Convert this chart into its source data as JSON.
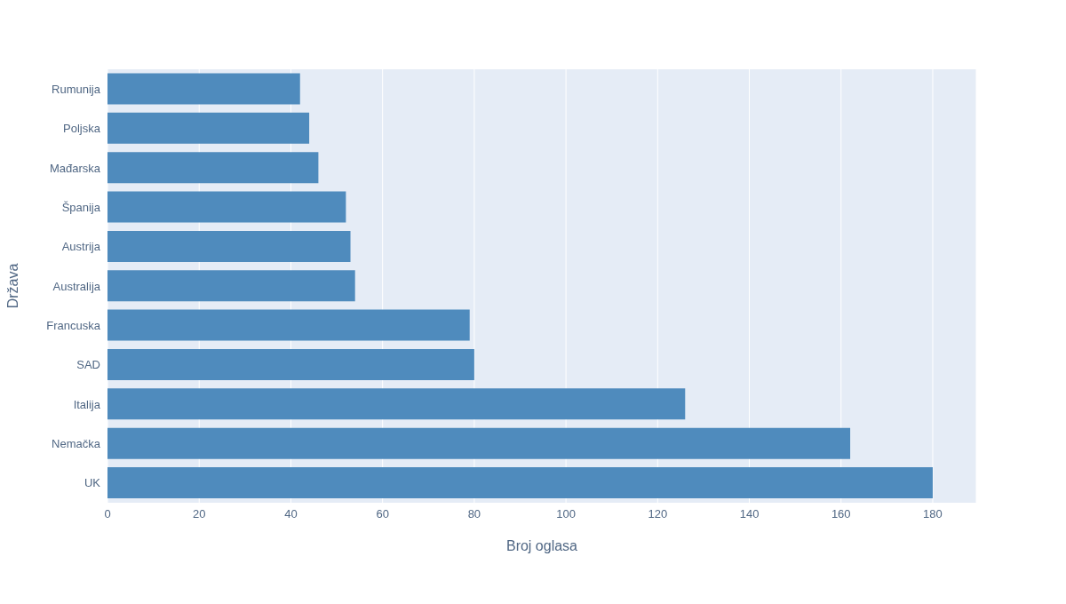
{
  "chart_data": {
    "type": "bar",
    "orientation": "horizontal",
    "xlabel": "Broj oglasa",
    "ylabel": "Država",
    "categories": [
      "Rumunija",
      "Poljska",
      "Mađarska",
      "Španija",
      "Austrija",
      "Australija",
      "Francuska",
      "SAD",
      "Italija",
      "Nemačka",
      "UK"
    ],
    "values": [
      42,
      44,
      46,
      52,
      53,
      54,
      79,
      80,
      126,
      162,
      180
    ],
    "color": "#4f8bbd",
    "xlim": [
      0,
      189.5
    ],
    "xticks": [
      0,
      20,
      40,
      60,
      80,
      100,
      120,
      140,
      160,
      180
    ],
    "grid": "x"
  }
}
